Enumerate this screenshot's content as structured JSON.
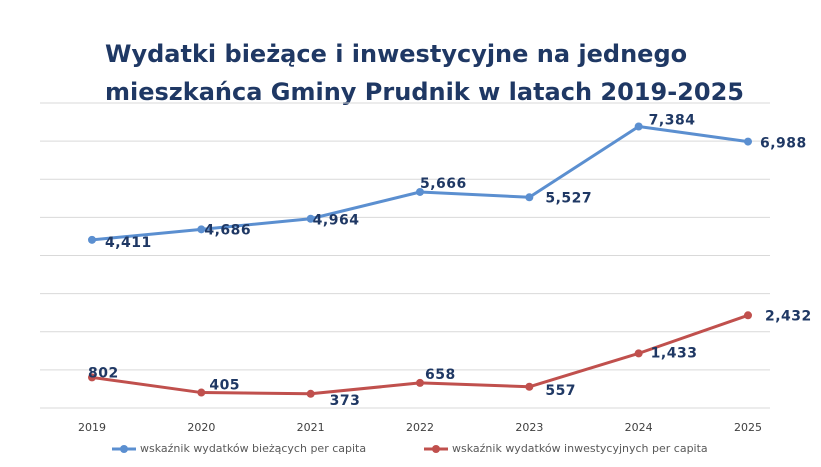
{
  "chart_data": {
    "type": "line",
    "title": [
      "Wydatki bieżące i inwestycyjne na jednego",
      "mieszkańca Gminy Prudnik w latach 2019-2025"
    ],
    "categories": [
      "2019",
      "2020",
      "2021",
      "2022",
      "2023",
      "2024",
      "2025"
    ],
    "series": [
      {
        "name": "wskaźnik wydatków bieżących per capita",
        "color": "#5b8fd0",
        "values": [
          4411,
          4686,
          4964,
          5666,
          5527,
          7384,
          6988
        ],
        "value_labels": [
          "4,411",
          "4,686",
          "4,964",
          "5,666",
          "5,527",
          "7,384",
          "6,988"
        ]
      },
      {
        "name": "wskaźnik wydatków inwestycyjnych per capita",
        "color": "#c0504d",
        "values": [
          802,
          405,
          373,
          658,
          557,
          1433,
          2432
        ],
        "value_labels": [
          "802",
          "405",
          "373",
          "658",
          "557",
          "1,433",
          "2,432"
        ]
      }
    ],
    "ylim": [
      0,
      8000
    ],
    "yticks": [
      0,
      1000,
      2000,
      3000,
      4000,
      5000,
      6000,
      7000,
      8000
    ],
    "grid": true,
    "legend": "bottom"
  }
}
